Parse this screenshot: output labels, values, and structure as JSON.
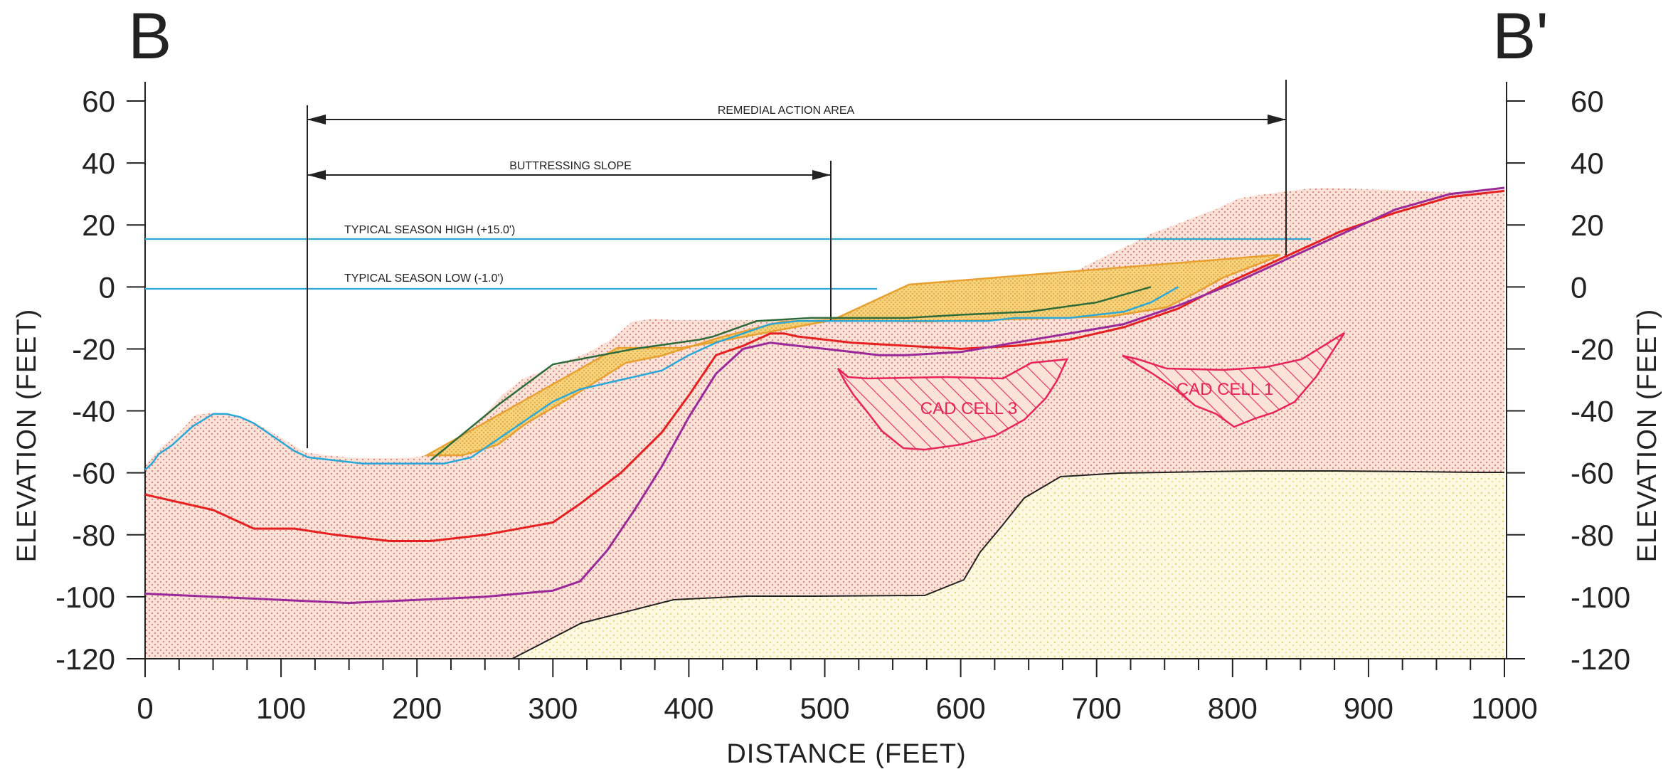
{
  "section": {
    "start_label": "B",
    "end_label": "B'"
  },
  "axes": {
    "x_title": "DISTANCE (FEET)",
    "y_title_left": "ELEVATION (FEET)",
    "y_title_right": "ELEVATION (FEET)",
    "x_ticks": [
      "0",
      "100",
      "200",
      "300",
      "400",
      "500",
      "600",
      "700",
      "800",
      "900",
      "1000"
    ],
    "y_ticks": [
      "60",
      "40",
      "20",
      "0",
      "-20",
      "-40",
      "-60",
      "-80",
      "-100",
      "-120"
    ]
  },
  "annotations": {
    "remedial": "REMEDIAL ACTION AREA",
    "buttress": "BUTTRESSING SLOPE",
    "season_high": "TYPICAL SEASON HIGH (+15.0')",
    "season_low": "TYPICAL SEASON LOW (-1.0')",
    "cad3": "CAD CELL 3",
    "cad1": "CAD CELL 1"
  },
  "colors": {
    "water_line": "#2ba8d8",
    "ground_blue": "#2ba8d8",
    "fill_orange": "#e8a838",
    "red_line": "#e62020",
    "purple_line": "#9a2a9a",
    "green_line": "#2e6b3a",
    "cad_magenta": "#e8245a",
    "sediment_dots": "#e89090",
    "bedrock_dots": "#e8e090"
  },
  "chart_data": {
    "type": "line",
    "xlabel": "DISTANCE (FEET)",
    "ylabel": "ELEVATION (FEET)",
    "xlim": [
      0,
      1000
    ],
    "ylim": [
      -120,
      60
    ],
    "horizontal_lines": [
      {
        "name": "TYPICAL SEASON HIGH (+15.0')",
        "y": 15
      },
      {
        "name": "TYPICAL SEASON LOW (-1.0')",
        "y": -1
      }
    ],
    "dimension_lines": [
      {
        "name": "REMEDIAL ACTION AREA",
        "x_start": 120,
        "x_end": 840,
        "y": 53
      },
      {
        "name": "BUTTRESSING SLOPE",
        "x_start": 120,
        "x_end": 485,
        "y": 36
      }
    ],
    "series": [
      {
        "x": [
          0,
          5,
          10,
          20,
          35,
          50,
          60,
          70,
          80,
          90,
          100,
          110,
          120,
          140,
          160,
          180,
          200,
          220,
          240,
          250,
          260,
          280,
          300,
          320,
          340,
          360,
          380,
          400,
          420,
          440,
          460,
          480,
          500,
          520,
          540,
          560,
          580,
          600,
          620,
          640,
          660,
          680,
          700,
          720,
          740,
          760
        ],
        "y": [
          -59,
          -57,
          -54,
          -51,
          -45,
          -41,
          -41,
          -42,
          -44,
          -47,
          -50,
          -53,
          -55,
          -56,
          -57,
          -57,
          -57,
          -57,
          -55,
          -52,
          -49,
          -43,
          -37,
          -33,
          -31,
          -29,
          -27,
          -22,
          -18,
          -15,
          -12,
          -11,
          -11,
          -11,
          -11,
          -11,
          -11,
          -11,
          -11,
          -10,
          -10,
          -10,
          -9,
          -8,
          -5,
          0
        ]
      },
      {
        "x": [
          210,
          260,
          300,
          360,
          408,
          418,
          450,
          490,
          560,
          600,
          650,
          700,
          740
        ],
        "y": [
          -56,
          -38,
          -25,
          -20,
          -17,
          -16,
          -11,
          -10,
          -10,
          -9,
          -8,
          -5,
          0
        ]
      },
      {
        "x": [
          0,
          20,
          50,
          80,
          110,
          140,
          180,
          210,
          250,
          300,
          320,
          350,
          380,
          400,
          420,
          440,
          460,
          470,
          480,
          520,
          560,
          600,
          640,
          680,
          720,
          760,
          800,
          840,
          880,
          920,
          960,
          1000
        ],
        "y": [
          -67,
          -69,
          -72,
          -78,
          -78,
          -80,
          -82,
          -82,
          -80,
          -76,
          -70,
          -60,
          -47,
          -35,
          -22,
          -19,
          -15,
          -15,
          -16,
          -18,
          -19,
          -20,
          -19,
          -17,
          -13,
          -7,
          2,
          10,
          18,
          24,
          29,
          31
        ]
      },
      {
        "x": [
          0,
          50,
          100,
          150,
          200,
          250,
          300,
          320,
          340,
          360,
          380,
          400,
          420,
          440,
          460,
          480,
          500,
          520,
          540,
          560,
          600,
          640,
          680,
          720,
          760,
          800,
          840,
          880,
          920,
          960,
          1000
        ],
        "y": [
          -99,
          -100,
          -101,
          -102,
          -101,
          -100,
          -98,
          -95,
          -85,
          -72,
          -58,
          -42,
          -28,
          -20,
          -18,
          -19,
          -20,
          -21,
          -22,
          -22,
          -21,
          -18,
          -15,
          -12,
          -6,
          1,
          9,
          17,
          25,
          30,
          32
        ]
      }
    ]
  }
}
